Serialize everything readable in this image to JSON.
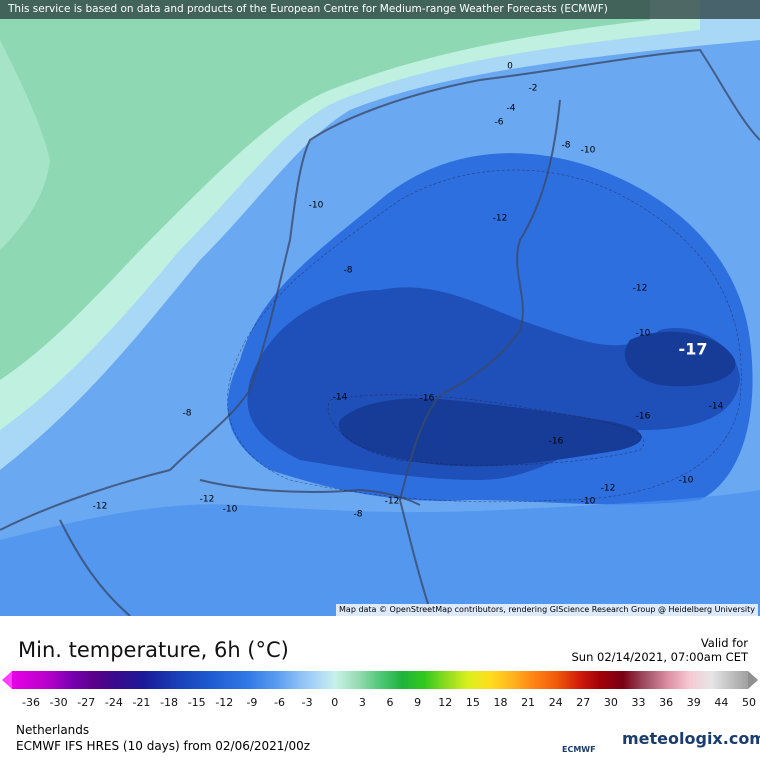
{
  "banner": "This service is based on data and products of the European Centre for Medium-range Weather Forecasts (ECMWF)",
  "map": {
    "contour_labels": [
      "0",
      "-2",
      "-4",
      "-6",
      "-8",
      "-10",
      "-10",
      "-12",
      "-8",
      "-12",
      "-10",
      "-14",
      "-16",
      "-8",
      "-16",
      "-14",
      "-16",
      "-10",
      "-12",
      "-10",
      "-12",
      "-10",
      "-12",
      "-12",
      "-8"
    ],
    "extreme_label": "-17",
    "attribution": "Map data © OpenStreetMap contributors, rendering GIScience Research Group @ Heidelberg University"
  },
  "legend": {
    "title": "Min. temperature, 6h (°C)",
    "valid_label": "Valid for",
    "valid_time": "Sun 02/14/2021, 07:00am CET",
    "ticks": [
      "-36",
      "-30",
      "-27",
      "-24",
      "-21",
      "-18",
      "-15",
      "-12",
      "-9",
      "-6",
      "-3",
      "0",
      "3",
      "6",
      "9",
      "12",
      "15",
      "18",
      "21",
      "24",
      "27",
      "30",
      "33",
      "36",
      "39",
      "44",
      "50"
    ]
  },
  "footer": {
    "region": "Netherlands",
    "model": "ECMWF IFS HRES (10 days) from 02/06/2021/00z",
    "ecmwf_logo": "ECMWF",
    "brand": "meteologix.com"
  }
}
